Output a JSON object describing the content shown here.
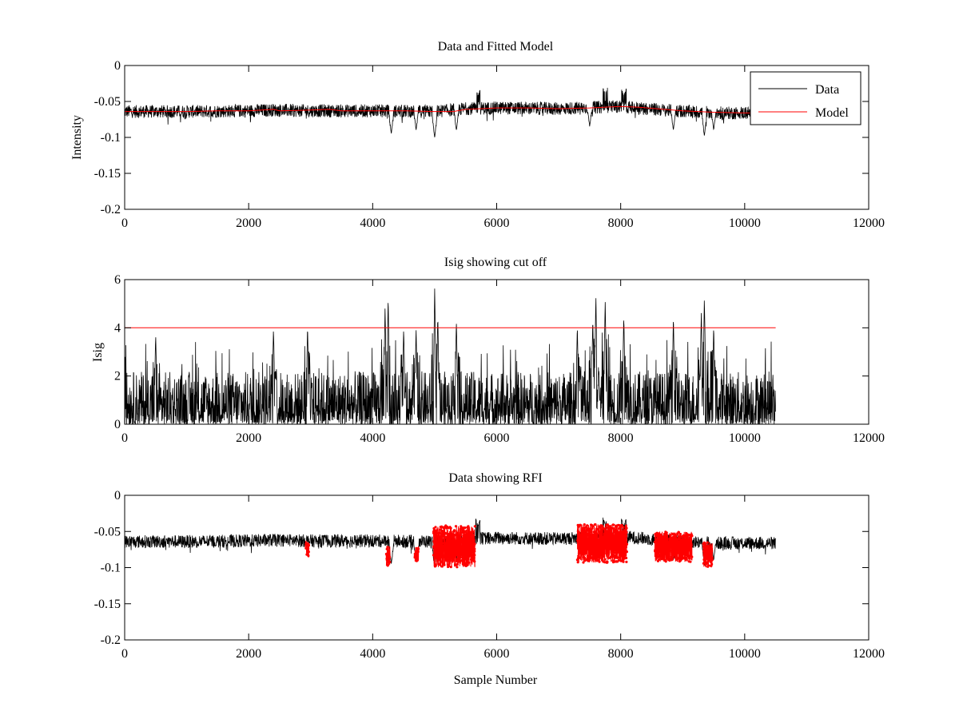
{
  "figure": {
    "colors": {
      "data": "#000000",
      "model": "#ff0000",
      "cutoff": "#ff0000",
      "rfi": "#ff0000"
    }
  },
  "chart_data": [
    {
      "type": "line",
      "title": "Data and Fitted Model",
      "xlabel": "",
      "ylabel": "Intensity",
      "xlim": [
        0,
        12000
      ],
      "ylim": [
        -0.2,
        0
      ],
      "xticks": [
        "0",
        "2000",
        "4000",
        "6000",
        "8000",
        "10000",
        "12000"
      ],
      "yticks": [
        "-0.2",
        "-0.15",
        "-0.1",
        "-0.05",
        "0"
      ],
      "legend": {
        "placement": "top-right",
        "entries": [
          "Data",
          "Model"
        ]
      },
      "series": [
        {
          "name": "Data",
          "style": "noise",
          "x_start": 0,
          "x_end": 10500,
          "baseline": [
            [
              0,
              -0.064
            ],
            [
              1000,
              -0.064
            ],
            [
              2000,
              -0.063
            ],
            [
              2400,
              -0.062
            ],
            [
              3000,
              -0.063
            ],
            [
              4000,
              -0.063
            ],
            [
              5000,
              -0.064
            ],
            [
              5500,
              -0.06
            ],
            [
              6000,
              -0.059
            ],
            [
              7000,
              -0.06
            ],
            [
              8000,
              -0.057
            ],
            [
              8700,
              -0.062
            ],
            [
              9500,
              -0.066
            ],
            [
              10500,
              -0.066
            ]
          ],
          "noise_amplitude": 0.009,
          "dips": [
            [
              4300,
              -0.095
            ],
            [
              4700,
              -0.09
            ],
            [
              5000,
              -0.1
            ],
            [
              5350,
              -0.09
            ],
            [
              7500,
              -0.085
            ],
            [
              8850,
              -0.09
            ],
            [
              9350,
              -0.098
            ],
            [
              9500,
              -0.09
            ]
          ],
          "peaks": [
            [
              5700,
              -0.042
            ],
            [
              7750,
              -0.04
            ],
            [
              8050,
              -0.042
            ]
          ]
        },
        {
          "name": "Model",
          "x": [
            0,
            500,
            1000,
            1500,
            2000,
            2400,
            2500,
            3000,
            3300,
            3500,
            4000,
            4500,
            5000,
            5300,
            5500,
            6000,
            6500,
            7000,
            7500,
            8000,
            8300,
            8700,
            9000,
            9500,
            10000,
            10500
          ],
          "y": [
            -0.064,
            -0.064,
            -0.064,
            -0.063,
            -0.063,
            -0.061,
            -0.063,
            -0.062,
            -0.061,
            -0.063,
            -0.063,
            -0.063,
            -0.064,
            -0.064,
            -0.061,
            -0.059,
            -0.059,
            -0.06,
            -0.059,
            -0.057,
            -0.058,
            -0.061,
            -0.063,
            -0.065,
            -0.066,
            -0.066
          ]
        }
      ]
    },
    {
      "type": "line",
      "title": "Isig showing cut off",
      "xlabel": "",
      "ylabel": "Isig",
      "xlim": [
        0,
        12000
      ],
      "ylim": [
        0,
        6
      ],
      "xticks": [
        "0",
        "2000",
        "4000",
        "6000",
        "8000",
        "10000",
        "12000"
      ],
      "yticks": [
        "0",
        "2",
        "4",
        "6"
      ],
      "series": [
        {
          "name": "Isig",
          "style": "spikes",
          "x_start": 0,
          "x_end": 10500,
          "typical_max": 2.2,
          "spikes": [
            [
              500,
              3.7
            ],
            [
              2400,
              4.0
            ],
            [
              2950,
              4.1
            ],
            [
              4200,
              4.8
            ],
            [
              4250,
              5.3
            ],
            [
              4500,
              4.0
            ],
            [
              4700,
              4.0
            ],
            [
              5000,
              5.7
            ],
            [
              5050,
              4.5
            ],
            [
              5350,
              4.3
            ],
            [
              7300,
              4.1
            ],
            [
              7550,
              4.4
            ],
            [
              7600,
              5.3
            ],
            [
              7750,
              5.1
            ],
            [
              8050,
              4.5
            ],
            [
              8850,
              4.5
            ],
            [
              9300,
              4.7
            ],
            [
              9350,
              5.3
            ],
            [
              9500,
              4.1
            ]
          ]
        },
        {
          "name": "Cut off",
          "x": [
            0,
            10500
          ],
          "y": [
            4,
            4
          ]
        }
      ]
    },
    {
      "type": "scatter",
      "title": "Data showing RFI",
      "xlabel": "Sample Number",
      "ylabel": "",
      "xlim": [
        0,
        12000
      ],
      "ylim": [
        -0.2,
        0
      ],
      "xticks": [
        "0",
        "2000",
        "4000",
        "6000",
        "8000",
        "10000",
        "12000"
      ],
      "yticks": [
        "-0.2",
        "-0.15",
        "-0.1",
        "-0.05",
        "0"
      ],
      "series": [
        {
          "name": "Data",
          "style": "noise",
          "x_start": 0,
          "x_end": 10500,
          "baseline": [
            [
              0,
              -0.064
            ],
            [
              1000,
              -0.064
            ],
            [
              2000,
              -0.063
            ],
            [
              2400,
              -0.062
            ],
            [
              3000,
              -0.063
            ],
            [
              4000,
              -0.063
            ],
            [
              5000,
              -0.064
            ],
            [
              5500,
              -0.06
            ],
            [
              6000,
              -0.059
            ],
            [
              7000,
              -0.06
            ],
            [
              8000,
              -0.057
            ],
            [
              8700,
              -0.062
            ],
            [
              9500,
              -0.066
            ],
            [
              10500,
              -0.066
            ]
          ],
          "noise_amplitude": 0.009,
          "dips": [
            [
              4300,
              -0.095
            ],
            [
              4700,
              -0.09
            ],
            [
              5000,
              -0.1
            ],
            [
              5350,
              -0.09
            ],
            [
              7500,
              -0.085
            ],
            [
              8850,
              -0.09
            ],
            [
              9350,
              -0.098
            ],
            [
              9500,
              -0.09
            ]
          ],
          "peaks": [
            [
              5700,
              -0.042
            ],
            [
              7750,
              -0.04
            ],
            [
              8050,
              -0.042
            ]
          ]
        },
        {
          "name": "RFI",
          "style": "markers",
          "regions": [
            {
              "x": [
                2920,
                2970
              ],
              "ymin": -0.088,
              "ymax": -0.062
            },
            {
              "x": [
                4220,
                4280
              ],
              "ymin": -0.098,
              "ymax": -0.07
            },
            {
              "x": [
                4680,
                4740
              ],
              "ymin": -0.092,
              "ymax": -0.07
            },
            {
              "x": [
                4980,
                5650
              ],
              "ymin": -0.1,
              "ymax": -0.042
            },
            {
              "x": [
                7300,
                8100
              ],
              "ymin": -0.093,
              "ymax": -0.04
            },
            {
              "x": [
                8550,
                9150
              ],
              "ymin": -0.092,
              "ymax": -0.05
            },
            {
              "x": [
                9330,
                9480
              ],
              "ymin": -0.1,
              "ymax": -0.065
            }
          ]
        }
      ]
    }
  ]
}
